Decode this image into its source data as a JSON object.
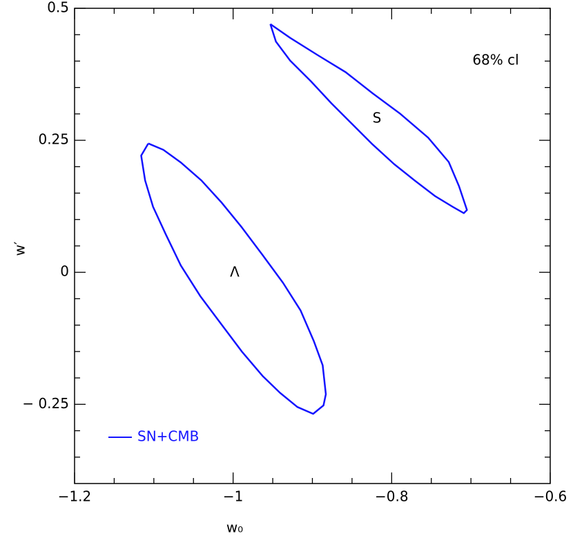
{
  "chart_data": {
    "type": "line",
    "xlabel": "w₀",
    "ylabel": "w′",
    "annotations": [
      "Λ",
      "S",
      "68% cl"
    ],
    "xlim": [
      -1.2,
      -0.6
    ],
    "ylim": [
      -0.4,
      0.5
    ],
    "xticks": [
      {
        "value": -1.2,
        "label": "−1.2"
      },
      {
        "value": -1,
        "label": "−1"
      },
      {
        "value": -0.8,
        "label": "−0.8"
      },
      {
        "value": -0.6,
        "label": "−0.6"
      }
    ],
    "yticks": [
      {
        "value": -0.25,
        "label": "− 0.25"
      },
      0,
      0.25,
      0.5
    ],
    "xminor_ticks": [
      -1.15,
      -1.1,
      -1.05,
      -0.95,
      -0.9,
      -0.85,
      -0.75,
      -0.7,
      -0.65
    ],
    "yminor_ticks": [
      -0.35,
      -0.3,
      -0.2,
      -0.15,
      -0.1,
      -0.05,
      0.05,
      0.1,
      0.15,
      0.2,
      0.3,
      0.35,
      0.4,
      0.45
    ],
    "legend": "lower left",
    "series": [
      {
        "name": "SN+CMB",
        "color": "#1414ff",
        "x": [
          -1.107,
          -1.088,
          -1.066,
          -1.04,
          -1.015,
          -0.989,
          -0.963,
          -0.937,
          -0.915,
          -0.898,
          -0.887,
          -0.883,
          -0.886,
          -0.899,
          -0.919,
          -0.941,
          -0.963,
          -0.989,
          -1.015,
          -1.041,
          -1.066,
          -1.085,
          -1.101,
          -1.111,
          -1.116,
          -1.107,
          null,
          -0.953,
          -0.928,
          -0.893,
          -0.858,
          -0.824,
          -0.789,
          -0.754,
          -0.728,
          -0.715,
          -0.705,
          -0.709,
          -0.723,
          -0.745,
          -0.771,
          -0.797,
          -0.824,
          -0.85,
          -0.876,
          -0.902,
          -0.928,
          -0.946,
          -0.953
        ],
        "y": [
          0.244,
          0.232,
          0.208,
          0.174,
          0.133,
          0.085,
          0.033,
          -0.02,
          -0.072,
          -0.131,
          -0.176,
          -0.231,
          -0.252,
          -0.268,
          -0.255,
          -0.228,
          -0.196,
          -0.15,
          -0.098,
          -0.046,
          0.013,
          0.072,
          0.124,
          0.174,
          0.221,
          0.244,
          null,
          0.47,
          0.444,
          0.411,
          0.379,
          0.339,
          0.3,
          0.255,
          0.209,
          0.163,
          0.118,
          0.112,
          0.124,
          0.144,
          0.174,
          0.205,
          0.242,
          0.281,
          0.32,
          0.362,
          0.401,
          0.437,
          0.47
        ]
      }
    ]
  }
}
